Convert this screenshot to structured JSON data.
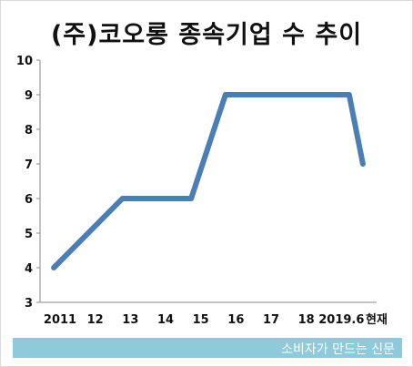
{
  "chart_data": {
    "type": "line",
    "title": "(주)코오롱 종속기업 수 추이",
    "categories": [
      "2011",
      "12",
      "13",
      "14",
      "15",
      "16",
      "17",
      "18",
      "2019.6",
      "현재"
    ],
    "series": [
      {
        "x": [
          2011,
          2013,
          2015,
          2016,
          2019.6,
          2020
        ],
        "values": [
          4,
          6,
          6,
          9,
          9,
          7
        ]
      }
    ],
    "y_ticks": [
      "3",
      "4",
      "5",
      "6",
      "7",
      "8",
      "9",
      "10"
    ],
    "ylim": [
      3,
      10
    ],
    "xlim": [
      2010.6,
      2020.4
    ],
    "line_color": "#4a7eb5",
    "grid": false
  },
  "footer": {
    "text": "소비자가 만드는 신문",
    "bg_color": "#8ecad9"
  }
}
